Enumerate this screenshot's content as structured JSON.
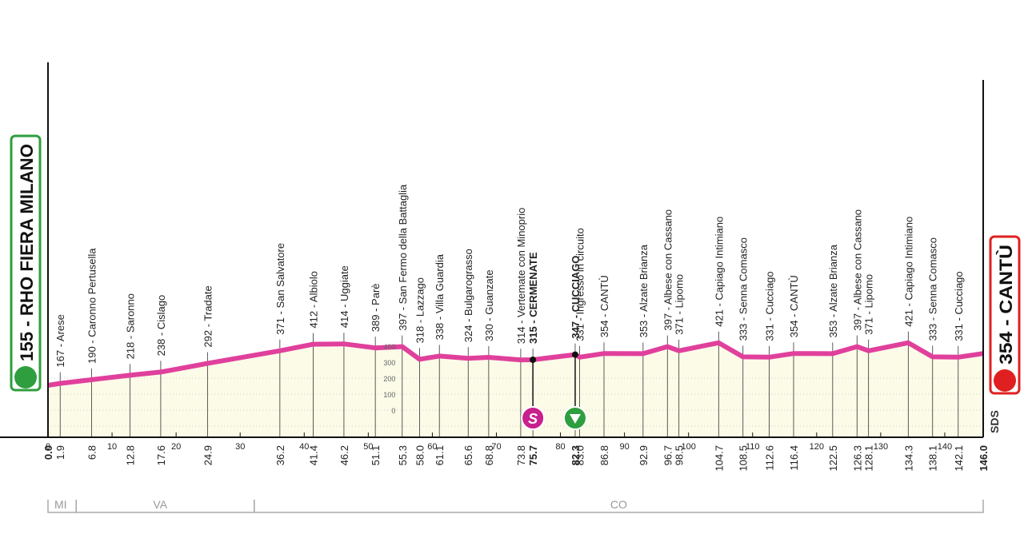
{
  "chart_data": {
    "type": "profile",
    "start": {
      "label": "155 - RHO FIERA MILANO",
      "km": 0,
      "km_label": "0.0",
      "alt": 155,
      "color": "#2e9e3e"
    },
    "finish": {
      "label": "354 - CANTÙ",
      "km": 146,
      "km_label": "146.0",
      "alt": 354,
      "color": "#e02020"
    },
    "line_color": "#e0409c",
    "waypoints": [
      {
        "km": 1.9,
        "km_label": "1.9",
        "alt": 167,
        "label": "167 - Arese"
      },
      {
        "km": 6.8,
        "km_label": "6.8",
        "alt": 190,
        "label": "190 - Caronno Pertusella"
      },
      {
        "km": 12.8,
        "km_label": "12.8",
        "alt": 218,
        "label": "218 - Saronno"
      },
      {
        "km": 17.6,
        "km_label": "17.6",
        "alt": 238,
        "label": "238 - Cislago"
      },
      {
        "km": 24.9,
        "km_label": "24.9",
        "alt": 292,
        "label": "292 - Tradate"
      },
      {
        "km": 36.2,
        "km_label": "36.2",
        "alt": 371,
        "label": "371 - San Salvatore"
      },
      {
        "km": 41.4,
        "km_label": "41.4",
        "alt": 412,
        "label": "412 - Albiolo"
      },
      {
        "km": 46.2,
        "km_label": "46.2",
        "alt": 414,
        "label": "414 - Uggiate"
      },
      {
        "km": 51.1,
        "km_label": "51.1",
        "alt": 389,
        "label": "389 - Parè"
      },
      {
        "km": 55.3,
        "km_label": "55.3",
        "alt": 397,
        "label": "397 - San Fermo della Battaglia"
      },
      {
        "km": 58.0,
        "km_label": "58.0",
        "alt": 318,
        "label": "318 - Lazzago"
      },
      {
        "km": 61.1,
        "km_label": "61.1",
        "alt": 338,
        "label": "338 - Villa Guardia"
      },
      {
        "km": 65.6,
        "km_label": "65.6",
        "alt": 324,
        "label": "324 - Bulgarograsso"
      },
      {
        "km": 68.8,
        "km_label": "68.8",
        "alt": 330,
        "label": "330 - Guanzate"
      },
      {
        "km": 73.8,
        "km_label": "73.8",
        "alt": 314,
        "label": "314 - Vertemate con Minoprio"
      },
      {
        "km": 75.7,
        "km_label": "75.7",
        "alt": 315,
        "label": "315 - CERMENATE",
        "bold": true,
        "icon": "S",
        "icon_color": "#c8208c"
      },
      {
        "km": 82.3,
        "km_label": "82.3",
        "alt": 347,
        "label": "347 - CUCCIAGO",
        "bold": true,
        "icon": "triangle",
        "icon_color": "#2e9e3e"
      },
      {
        "km": 83.0,
        "km_label": "83.0",
        "alt": 331,
        "label": "331 - Ingresso in circuito"
      },
      {
        "km": 86.8,
        "km_label": "86.8",
        "alt": 354,
        "label": "354 - CANTÙ"
      },
      {
        "km": 92.9,
        "km_label": "92.9",
        "alt": 353,
        "label": "353 - Alzate Brianza"
      },
      {
        "km": 96.7,
        "km_label": "96.7",
        "alt": 397,
        "label": "397 - Albese con Cassano"
      },
      {
        "km": 98.5,
        "km_label": "98.5",
        "alt": 371,
        "label": "371 - Lipomo"
      },
      {
        "km": 104.7,
        "km_label": "104.7",
        "alt": 421,
        "label": "421 - Capiago Intimiano"
      },
      {
        "km": 108.5,
        "km_label": "108.5",
        "alt": 333,
        "label": "333 - Senna Comasco"
      },
      {
        "km": 112.6,
        "km_label": "112.6",
        "alt": 331,
        "label": "331 - Cucciago"
      },
      {
        "km": 116.4,
        "km_label": "116.4",
        "alt": 354,
        "label": "354 - CANTÙ"
      },
      {
        "km": 122.5,
        "km_label": "122.5",
        "alt": 353,
        "label": "353 - Alzate Brianza"
      },
      {
        "km": 126.3,
        "km_label": "126.3",
        "alt": 397,
        "label": "397 - Albese con Cassano"
      },
      {
        "km": 128.1,
        "km_label": "128.1",
        "alt": 371,
        "label": "371 - Lipomo"
      },
      {
        "km": 134.3,
        "km_label": "134.3",
        "alt": 421,
        "label": "421 - Capiago Intimiano"
      },
      {
        "km": 138.1,
        "km_label": "138.1",
        "alt": 333,
        "label": "333 - Senna Comasco"
      },
      {
        "km": 142.1,
        "km_label": "142.1",
        "alt": 331,
        "label": "331 - Cucciago"
      }
    ],
    "xlim": [
      0,
      146
    ],
    "xticks": [
      0,
      10,
      20,
      30,
      40,
      50,
      60,
      70,
      80,
      90,
      100,
      110,
      120,
      130,
      140
    ],
    "ylim": [
      0,
      400
    ],
    "yticks": [
      0,
      100,
      200,
      300,
      400
    ],
    "ytick_km": 51,
    "regions": [
      {
        "label": "MI",
        "from": 0,
        "to": 4.4
      },
      {
        "label": "VA",
        "from": 4.4,
        "to": 32.2
      },
      {
        "label": "CO",
        "from": 32.2,
        "to": 146
      }
    ],
    "logo": "SDS"
  }
}
